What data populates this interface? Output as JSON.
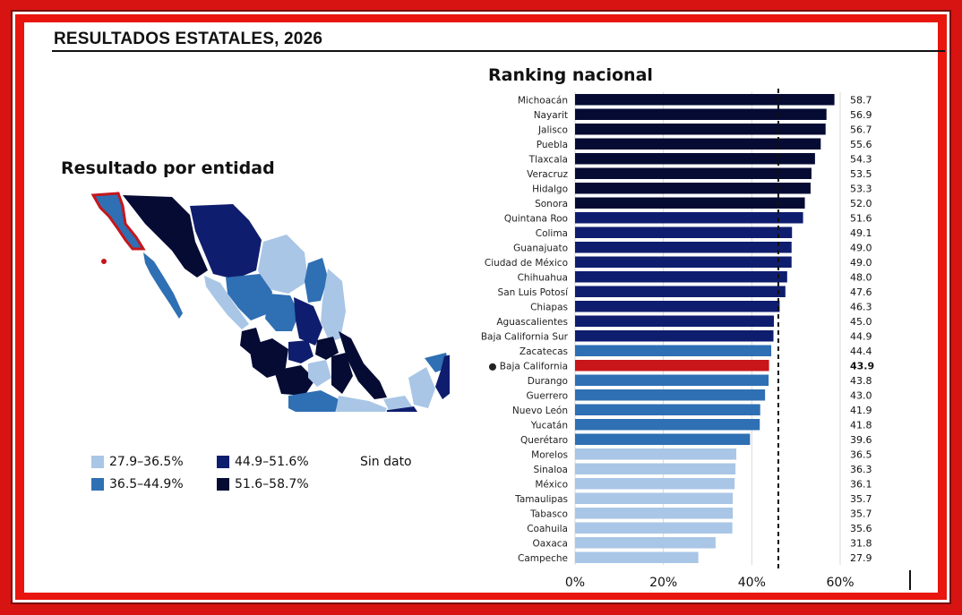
{
  "page_title": "RESULTADOS ESTATALES, 2026",
  "map": {
    "title": "Resultado por entidad",
    "legend": [
      {
        "label": "27.9–36.5%",
        "color": "#a9c6e6"
      },
      {
        "label": "44.9–51.6%",
        "color": "#0f1d6e"
      },
      {
        "label": "Sin dato",
        "color": ""
      },
      {
        "label": "36.5–44.9%",
        "color": "#2f6fb3"
      },
      {
        "label": "51.6–58.7%",
        "color": "#050b33"
      }
    ],
    "highlight_color": "#c4171c"
  },
  "chart_data": {
    "type": "bar",
    "orientation": "horizontal",
    "title": "Ranking nacional",
    "categories": [
      "Michoacán",
      "Nayarit",
      "Jalisco",
      "Puebla",
      "Tlaxcala",
      "Veracruz",
      "Hidalgo",
      "Sonora",
      "Quintana Roo",
      "Colima",
      "Guanajuato",
      "Ciudad de México",
      "Chihuahua",
      "San Luis Potosí",
      "Chiapas",
      "Aguascalientes",
      "Baja California Sur",
      "Zacatecas",
      "Baja California",
      "Durango",
      "Guerrero",
      "Nuevo León",
      "Yucatán",
      "Querétaro",
      "Morelos",
      "Sinaloa",
      "México",
      "Tamaulipas",
      "Tabasco",
      "Coahuila",
      "Oaxaca",
      "Campeche"
    ],
    "value_labels": [
      "58.7",
      "56.9",
      "56.7",
      "55.6",
      "54.3",
      "53.5",
      "53.3",
      "52.0",
      "51.6",
      "49.1",
      "49.0",
      "49.0",
      "48.0",
      "47.6",
      "46.3",
      "45.0",
      "44.9",
      "44.4",
      "43.9",
      "43.8",
      "43.0",
      "41.9",
      "41.8",
      "39.6",
      "36.5",
      "36.3",
      "36.1",
      "35.7",
      "35.7",
      "35.6",
      "31.8",
      "27.9"
    ],
    "values": [
      58.7,
      56.9,
      56.7,
      55.6,
      54.3,
      53.5,
      53.3,
      52.0,
      51.6,
      49.1,
      49.0,
      49.0,
      48.0,
      47.6,
      46.3,
      45.0,
      44.9,
      44.4,
      43.9,
      43.8,
      43.0,
      41.9,
      41.8,
      39.6,
      36.5,
      36.3,
      36.1,
      35.7,
      35.7,
      35.6,
      31.8,
      27.9
    ],
    "highlight_index": 18,
    "highlight_marker": "●",
    "xlim": [
      0,
      60
    ],
    "x_ticks": [
      "0%",
      "20%",
      "40%",
      "60%"
    ],
    "x_tick_values": [
      0,
      20,
      40,
      60
    ],
    "reference_line_value": 46.0,
    "reference_line_style": "dashed",
    "grid": "vertical",
    "colors": {
      "band_1": "#050b33",
      "band_2": "#0f1d6e",
      "band_3": "#2f6fb3",
      "band_4": "#a9c6e6",
      "highlight": "#c8161b"
    }
  }
}
